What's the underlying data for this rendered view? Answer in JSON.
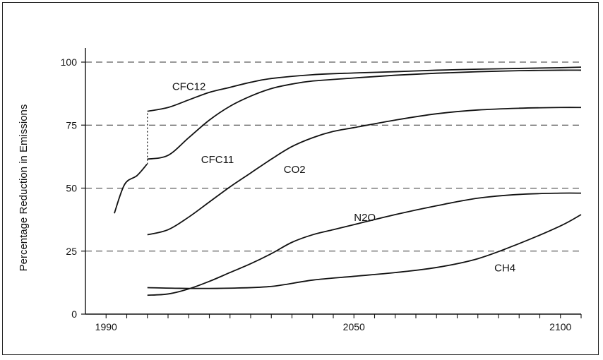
{
  "chart_data": {
    "type": "line",
    "title": "",
    "xlabel": "",
    "ylabel": "Percentage Reduction in Emissions",
    "xlim": [
      1985,
      2105
    ],
    "ylim": [
      0,
      100
    ],
    "x_ticks": [
      {
        "value": 1990,
        "label": "1990"
      },
      {
        "value": 2050,
        "label": "2050"
      },
      {
        "value": 2100,
        "label": "2100"
      }
    ],
    "y_ticks": [
      {
        "value": 0,
        "label": "0"
      },
      {
        "value": 25,
        "label": "25"
      },
      {
        "value": 50,
        "label": "50"
      },
      {
        "value": 75,
        "label": "75"
      },
      {
        "value": 100,
        "label": "100"
      }
    ],
    "grid": {
      "horizontal_dashed": [
        25,
        50,
        75,
        100
      ]
    },
    "series": [
      {
        "name": "CFC12",
        "color": "#111111",
        "label_at": [
          2006,
          89
        ],
        "points": [
          [
            2000,
            80.5
          ],
          [
            2005,
            82
          ],
          [
            2010,
            85
          ],
          [
            2015,
            88
          ],
          [
            2020,
            90
          ],
          [
            2025,
            92
          ],
          [
            2030,
            93.5
          ],
          [
            2040,
            95
          ],
          [
            2050,
            95.7
          ],
          [
            2060,
            96.2
          ],
          [
            2070,
            96.8
          ],
          [
            2080,
            97.2
          ],
          [
            2090,
            97.5
          ],
          [
            2100,
            97.8
          ],
          [
            2105,
            98
          ]
        ]
      },
      {
        "name": "CFC11",
        "color": "#111111",
        "label_at": [
          2013,
          60
        ],
        "points": [
          [
            1992,
            40
          ],
          [
            1994.5,
            51.5
          ],
          [
            1997.5,
            55
          ],
          [
            1999.9,
            59.5
          ],
          [
            2000,
            61.5
          ],
          [
            2005,
            63
          ],
          [
            2010,
            70
          ],
          [
            2015,
            77
          ],
          [
            2020,
            82.5
          ],
          [
            2025,
            86.5
          ],
          [
            2030,
            89.5
          ],
          [
            2035,
            91.3
          ],
          [
            2040,
            92.5
          ],
          [
            2050,
            93.7
          ],
          [
            2060,
            94.8
          ],
          [
            2070,
            95.6
          ],
          [
            2080,
            96.2
          ],
          [
            2090,
            96.6
          ],
          [
            2100,
            96.8
          ],
          [
            2105,
            96.8
          ]
        ]
      },
      {
        "name": "CO2",
        "color": "#111111",
        "label_at": [
          2033,
          56
        ],
        "points": [
          [
            2000,
            31.5
          ],
          [
            2005,
            33.5
          ],
          [
            2010,
            38.5
          ],
          [
            2015,
            44.5
          ],
          [
            2020,
            50.5
          ],
          [
            2025,
            56
          ],
          [
            2030,
            61.5
          ],
          [
            2035,
            66.5
          ],
          [
            2040,
            70
          ],
          [
            2045,
            72.5
          ],
          [
            2050,
            74
          ],
          [
            2060,
            77
          ],
          [
            2070,
            79.5
          ],
          [
            2080,
            81
          ],
          [
            2090,
            81.7
          ],
          [
            2100,
            82
          ],
          [
            2105,
            82
          ]
        ]
      },
      {
        "name": "N2O",
        "color": "#111111",
        "label_at": [
          2050,
          37
        ],
        "points": [
          [
            2000,
            7.5
          ],
          [
            2005,
            8
          ],
          [
            2010,
            10
          ],
          [
            2015,
            13
          ],
          [
            2020,
            16.5
          ],
          [
            2025,
            20
          ],
          [
            2030,
            24
          ],
          [
            2035,
            28.5
          ],
          [
            2040,
            31.5
          ],
          [
            2045,
            33.5
          ],
          [
            2050,
            35.5
          ],
          [
            2060,
            39.5
          ],
          [
            2070,
            43
          ],
          [
            2080,
            46
          ],
          [
            2090,
            47.5
          ],
          [
            2100,
            48
          ],
          [
            2105,
            48
          ]
        ]
      },
      {
        "name": "CH4",
        "color": "#111111",
        "label_at": [
          2084,
          17
        ],
        "points": [
          [
            2000,
            10.5
          ],
          [
            2010,
            10.2
          ],
          [
            2020,
            10.3
          ],
          [
            2030,
            11
          ],
          [
            2040,
            13.5
          ],
          [
            2050,
            15
          ],
          [
            2060,
            16.5
          ],
          [
            2070,
            18.5
          ],
          [
            2080,
            22
          ],
          [
            2090,
            28
          ],
          [
            2100,
            35
          ],
          [
            2105,
            39.5
          ]
        ]
      }
    ],
    "annotations": [
      {
        "type": "dotted-connector",
        "x": 2000,
        "y_from": 59.5,
        "y_to": 80.5
      }
    ]
  }
}
